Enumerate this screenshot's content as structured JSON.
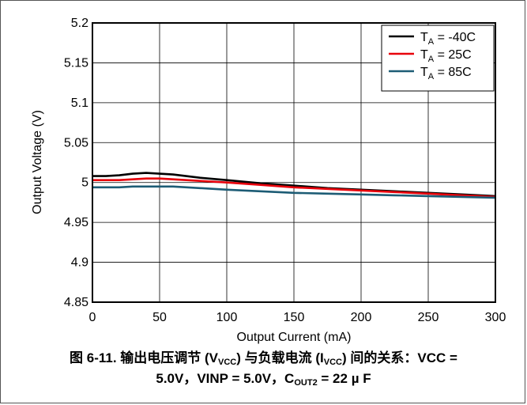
{
  "chart_data": {
    "type": "line",
    "xlabel": "Output Current (mA)",
    "ylabel": "Output Voltage (V)",
    "xlim": [
      0,
      300
    ],
    "ylim": [
      4.85,
      5.2
    ],
    "xticks": [
      0,
      50,
      100,
      150,
      200,
      250,
      300
    ],
    "yticks": [
      4.85,
      4.9,
      4.95,
      5,
      5.05,
      5.1,
      5.15,
      5.2
    ],
    "xtick_labels": [
      "0",
      "50",
      "100",
      "150",
      "200",
      "250",
      "300"
    ],
    "ytick_labels": [
      "4.85",
      "4.9",
      "4.95",
      "5",
      "5.05",
      "5.1",
      "5.15",
      "5.2"
    ],
    "grid": true,
    "legend_position": "top-right",
    "series": [
      {
        "name": "T_A = -40C",
        "legend_main": "T",
        "legend_sub": "A",
        "legend_rest": " = -40C",
        "color": "#000000",
        "x": [
          0,
          10,
          20,
          30,
          40,
          50,
          60,
          80,
          100,
          125,
          150,
          175,
          200,
          225,
          250,
          275,
          300
        ],
        "y": [
          5.008,
          5.008,
          5.009,
          5.011,
          5.012,
          5.011,
          5.01,
          5.006,
          5.003,
          4.999,
          4.996,
          4.993,
          4.991,
          4.989,
          4.987,
          4.985,
          4.983
        ]
      },
      {
        "name": "T_A = 25C",
        "legend_main": "T",
        "legend_sub": "A",
        "legend_rest": " = 25C",
        "color": "#e8000b",
        "x": [
          0,
          10,
          20,
          30,
          40,
          50,
          60,
          80,
          100,
          125,
          150,
          175,
          200,
          225,
          250,
          275,
          300
        ],
        "y": [
          5.003,
          5.003,
          5.003,
          5.004,
          5.005,
          5.005,
          5.004,
          5.002,
          5.0,
          4.997,
          4.994,
          4.992,
          4.99,
          4.988,
          4.986,
          4.984,
          4.982
        ]
      },
      {
        "name": "T_A = 85C",
        "legend_main": "T",
        "legend_sub": "A",
        "legend_rest": " = 85C",
        "color": "#1d5c75",
        "x": [
          0,
          10,
          20,
          30,
          40,
          50,
          60,
          80,
          100,
          125,
          150,
          175,
          200,
          225,
          250,
          275,
          300
        ],
        "y": [
          4.994,
          4.994,
          4.994,
          4.995,
          4.995,
          4.995,
          4.995,
          4.993,
          4.991,
          4.989,
          4.987,
          4.986,
          4.985,
          4.984,
          4.983,
          4.982,
          4.981
        ]
      }
    ]
  },
  "caption": {
    "line1_a": "图 6-11. 输出电压调节 (V",
    "line1_sub1": "VCC",
    "line1_b": ") 与负载电流 (I",
    "line1_sub2": "VCC",
    "line1_c": ") 间的关系：VCC =",
    "line2_a": "5.0V，VINP = 5.0V，C",
    "line2_sub": "OUT2",
    "line2_b": " = 22 µ F"
  }
}
